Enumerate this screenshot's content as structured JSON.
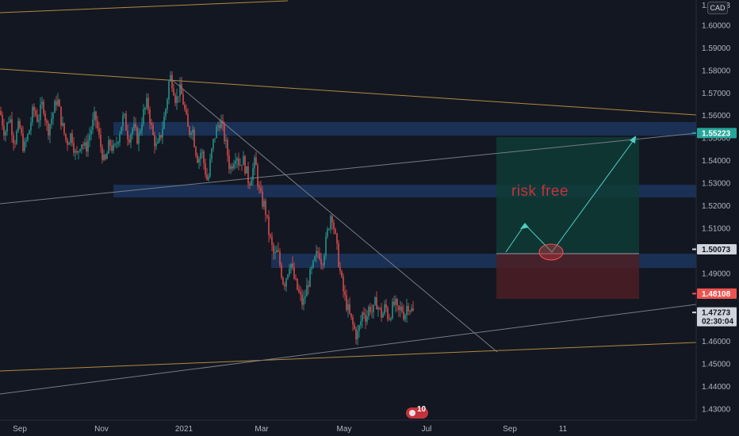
{
  "currency": "CAD",
  "top_price_fragment": "1.",
  "top_price_digit": "3",
  "annotation_text": "risk free",
  "indicator_count": "10",
  "colors": {
    "background": "#131722",
    "up": "#26a69a",
    "down": "#ef5350",
    "zone": "#1e3a66",
    "target": "#0f3b36",
    "stop": "#4d1f24",
    "trend_orange": "#b38a3c",
    "trend_grey": "#787b86"
  },
  "price_badges": [
    {
      "value": "1.55223",
      "price": 1.55223,
      "color": "#26a69a"
    },
    {
      "value": "1.50073",
      "price": 1.50073,
      "color": "#d1d4dc"
    },
    {
      "value": "1.48108",
      "price": 1.48108,
      "color": "#ef5350"
    },
    {
      "value": "1.47273",
      "price": 1.47273,
      "color": "#d1d4dc",
      "countdown": "02:30:04"
    }
  ],
  "chart_data": {
    "type": "candlestick",
    "y_axis": {
      "min": 1.425,
      "max": 1.6112,
      "ticks": [
        "1.43000",
        "1.44000",
        "1.45000",
        "1.46000",
        "1.47000",
        "1.48000",
        "1.49000",
        "1.50000",
        "1.51000",
        "1.52000",
        "1.53000",
        "1.54000",
        "1.55000",
        "1.56000",
        "1.57000",
        "1.58000",
        "1.59000",
        "1.60000"
      ]
    },
    "x_axis": {
      "labels": [
        {
          "text": "Sep",
          "x": 25
        },
        {
          "text": "Nov",
          "x": 128
        },
        {
          "text": "2021",
          "x": 232
        },
        {
          "text": "Mar",
          "x": 330
        },
        {
          "text": "May",
          "x": 434
        },
        {
          "text": "Jul",
          "x": 538
        },
        {
          "text": "Sep",
          "x": 643
        },
        {
          "text": "11",
          "x": 710
        }
      ]
    },
    "close_path": [
      [
        0,
        1.562
      ],
      [
        6,
        1.552
      ],
      [
        12,
        1.56
      ],
      [
        18,
        1.548
      ],
      [
        24,
        1.556
      ],
      [
        30,
        1.545
      ],
      [
        36,
        1.552
      ],
      [
        42,
        1.563
      ],
      [
        48,
        1.558
      ],
      [
        54,
        1.566
      ],
      [
        60,
        1.553
      ],
      [
        66,
        1.56
      ],
      [
        72,
        1.568
      ],
      [
        78,
        1.556
      ],
      [
        84,
        1.548
      ],
      [
        90,
        1.552
      ],
      [
        96,
        1.541
      ],
      [
        102,
        1.549
      ],
      [
        108,
        1.545
      ],
      [
        114,
        1.553
      ],
      [
        120,
        1.56
      ],
      [
        126,
        1.548
      ],
      [
        132,
        1.538
      ],
      [
        138,
        1.548
      ],
      [
        144,
        1.544
      ],
      [
        150,
        1.552
      ],
      [
        156,
        1.56
      ],
      [
        162,
        1.55
      ],
      [
        168,
        1.555
      ],
      [
        174,
        1.549
      ],
      [
        180,
        1.56
      ],
      [
        186,
        1.566
      ],
      [
        192,
        1.552
      ],
      [
        198,
        1.545
      ],
      [
        204,
        1.553
      ],
      [
        210,
        1.565
      ],
      [
        214,
        1.578
      ],
      [
        218,
        1.574
      ],
      [
        222,
        1.566
      ],
      [
        226,
        1.572
      ],
      [
        230,
        1.568
      ],
      [
        234,
        1.56
      ],
      [
        238,
        1.552
      ],
      [
        242,
        1.556
      ],
      [
        246,
        1.546
      ],
      [
        250,
        1.54
      ],
      [
        254,
        1.545
      ],
      [
        258,
        1.537
      ],
      [
        262,
        1.53
      ],
      [
        266,
        1.542
      ],
      [
        270,
        1.55
      ],
      [
        274,
        1.555
      ],
      [
        278,
        1.558
      ],
      [
        282,
        1.552
      ],
      [
        286,
        1.545
      ],
      [
        290,
        1.536
      ],
      [
        294,
        1.54
      ],
      [
        298,
        1.544
      ],
      [
        302,
        1.538
      ],
      [
        306,
        1.541
      ],
      [
        310,
        1.536
      ],
      [
        314,
        1.53
      ],
      [
        318,
        1.535
      ],
      [
        322,
        1.54
      ],
      [
        326,
        1.528
      ],
      [
        330,
        1.522
      ],
      [
        334,
        1.52
      ],
      [
        338,
        1.51
      ],
      [
        342,
        1.503
      ],
      [
        346,
        1.497
      ],
      [
        350,
        1.5
      ],
      [
        354,
        1.492
      ],
      [
        358,
        1.485
      ],
      [
        362,
        1.49
      ],
      [
        366,
        1.496
      ],
      [
        370,
        1.489
      ],
      [
        374,
        1.484
      ],
      [
        378,
        1.48
      ],
      [
        382,
        1.476
      ],
      [
        386,
        1.482
      ],
      [
        390,
        1.488
      ],
      [
        394,
        1.492
      ],
      [
        398,
        1.497
      ],
      [
        402,
        1.5
      ],
      [
        406,
        1.495
      ],
      [
        410,
        1.502
      ],
      [
        414,
        1.51
      ],
      [
        418,
        1.518
      ],
      [
        422,
        1.508
      ],
      [
        426,
        1.498
      ],
      [
        430,
        1.488
      ],
      [
        434,
        1.48
      ],
      [
        438,
        1.475
      ],
      [
        442,
        1.47
      ],
      [
        446,
        1.466
      ],
      [
        450,
        1.462
      ],
      [
        454,
        1.467
      ],
      [
        458,
        1.474
      ],
      [
        462,
        1.47
      ],
      [
        466,
        1.476
      ],
      [
        470,
        1.472
      ],
      [
        474,
        1.478
      ],
      [
        478,
        1.474
      ],
      [
        482,
        1.471
      ],
      [
        486,
        1.476
      ],
      [
        490,
        1.47
      ],
      [
        494,
        1.474
      ],
      [
        498,
        1.477
      ],
      [
        502,
        1.472
      ],
      [
        506,
        1.475
      ],
      [
        510,
        1.471
      ],
      [
        514,
        1.477
      ],
      [
        518,
        1.474
      ],
      [
        521,
        1.4727
      ]
    ]
  }
}
